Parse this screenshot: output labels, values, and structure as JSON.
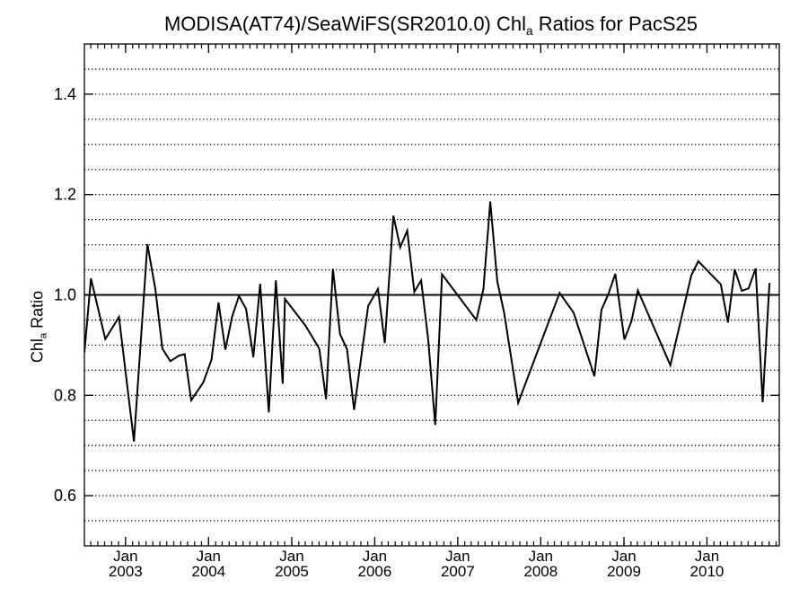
{
  "title_parts": {
    "before": "MODISA(AT74)/SeaWiFS(SR2010.0)  Chl",
    "sub": "a",
    "after": " Ratios for PacS25"
  },
  "ylabel_parts": {
    "before": "Chl",
    "sub": "a",
    "after": " Ratio"
  },
  "chart_data": {
    "type": "line",
    "ylim": [
      0.5,
      1.5
    ],
    "xlim": [
      "2002-07-04",
      "2010-11-15"
    ],
    "yticks": [
      {
        "value": 0.6,
        "label": "0.6"
      },
      {
        "value": 0.8,
        "label": "0.8"
      },
      {
        "value": 1.0,
        "label": "1.0"
      },
      {
        "value": 1.2,
        "label": "1.2"
      },
      {
        "value": 1.4,
        "label": "1.4"
      }
    ],
    "xticks": [
      {
        "date": "2003-01-01",
        "month": "Jan",
        "year": "2003"
      },
      {
        "date": "2004-01-01",
        "month": "Jan",
        "year": "2004"
      },
      {
        "date": "2005-01-01",
        "month": "Jan",
        "year": "2005"
      },
      {
        "date": "2006-01-01",
        "month": "Jan",
        "year": "2006"
      },
      {
        "date": "2007-01-01",
        "month": "Jan",
        "year": "2007"
      },
      {
        "date": "2008-01-01",
        "month": "Jan",
        "year": "2008"
      },
      {
        "date": "2009-01-01",
        "month": "Jan",
        "year": "2009"
      },
      {
        "date": "2010-01-01",
        "month": "Jan",
        "year": "2010"
      }
    ],
    "grid_y_dotted": [
      0.55,
      0.6,
      0.65,
      0.7,
      0.75,
      0.8,
      0.85,
      0.9,
      0.95,
      1.05,
      1.1,
      1.15,
      1.2,
      1.25,
      1.3,
      1.35,
      1.4,
      1.45
    ],
    "reference_line": 1.0,
    "series": [
      {
        "points": [
          [
            "2002-07-04",
            0.885
          ],
          [
            "2002-08-02",
            1.033
          ],
          [
            "2002-10-04",
            0.912
          ],
          [
            "2002-12-03",
            0.956
          ],
          [
            "2003-02-07",
            0.708
          ],
          [
            "2003-04-07",
            1.101
          ],
          [
            "2003-05-12",
            1.012
          ],
          [
            "2003-06-12",
            0.893
          ],
          [
            "2003-07-17",
            0.868
          ],
          [
            "2003-08-24",
            0.879
          ],
          [
            "2003-09-18",
            0.882
          ],
          [
            "2003-10-17",
            0.79
          ],
          [
            "2003-12-09",
            0.826
          ],
          [
            "2004-01-14",
            0.871
          ],
          [
            "2004-02-14",
            0.985
          ],
          [
            "2004-03-15",
            0.891
          ],
          [
            "2004-04-14",
            0.957
          ],
          [
            "2004-05-14",
            0.998
          ],
          [
            "2004-06-14",
            0.972
          ],
          [
            "2004-07-16",
            0.876
          ],
          [
            "2004-08-15",
            1.022
          ],
          [
            "2004-09-22",
            0.766
          ],
          [
            "2004-10-23",
            1.029
          ],
          [
            "2004-11-22",
            0.823
          ],
          [
            "2004-12-02",
            0.992
          ],
          [
            "2005-03-02",
            0.939
          ],
          [
            "2005-05-02",
            0.893
          ],
          [
            "2005-06-01",
            0.792
          ],
          [
            "2005-07-01",
            1.052
          ],
          [
            "2005-08-01",
            0.922
          ],
          [
            "2005-09-01",
            0.892
          ],
          [
            "2005-10-02",
            0.771
          ],
          [
            "2005-12-03",
            0.978
          ],
          [
            "2006-01-15",
            1.012
          ],
          [
            "2006-02-14",
            0.904
          ],
          [
            "2006-03-24",
            1.158
          ],
          [
            "2006-04-23",
            1.095
          ],
          [
            "2006-05-24",
            1.128
          ],
          [
            "2006-06-24",
            1.006
          ],
          [
            "2006-07-24",
            1.029
          ],
          [
            "2006-08-24",
            0.912
          ],
          [
            "2006-09-24",
            0.741
          ],
          [
            "2006-10-24",
            1.041
          ],
          [
            "2007-03-24",
            0.95
          ],
          [
            "2007-04-24",
            1.012
          ],
          [
            "2007-05-24",
            1.186
          ],
          [
            "2007-06-24",
            1.027
          ],
          [
            "2007-07-24",
            0.965
          ],
          [
            "2007-09-24",
            0.785
          ],
          [
            "2008-03-24",
            1.004
          ],
          [
            "2008-05-24",
            0.965
          ],
          [
            "2008-08-24",
            0.838
          ],
          [
            "2008-09-24",
            0.97
          ],
          [
            "2008-10-24",
            1.001
          ],
          [
            "2008-11-24",
            1.042
          ],
          [
            "2009-01-03",
            0.911
          ],
          [
            "2009-02-03",
            0.948
          ],
          [
            "2009-03-03",
            1.009
          ],
          [
            "2009-07-24",
            0.86
          ],
          [
            "2009-10-24",
            1.039
          ],
          [
            "2009-11-24",
            1.067
          ],
          [
            "2010-03-03",
            1.021
          ],
          [
            "2010-04-03",
            0.945
          ],
          [
            "2010-05-03",
            1.051
          ],
          [
            "2010-06-03",
            1.008
          ],
          [
            "2010-07-03",
            1.013
          ],
          [
            "2010-08-03",
            1.053
          ],
          [
            "2010-09-03",
            0.786
          ],
          [
            "2010-10-03",
            1.024
          ]
        ]
      }
    ]
  }
}
